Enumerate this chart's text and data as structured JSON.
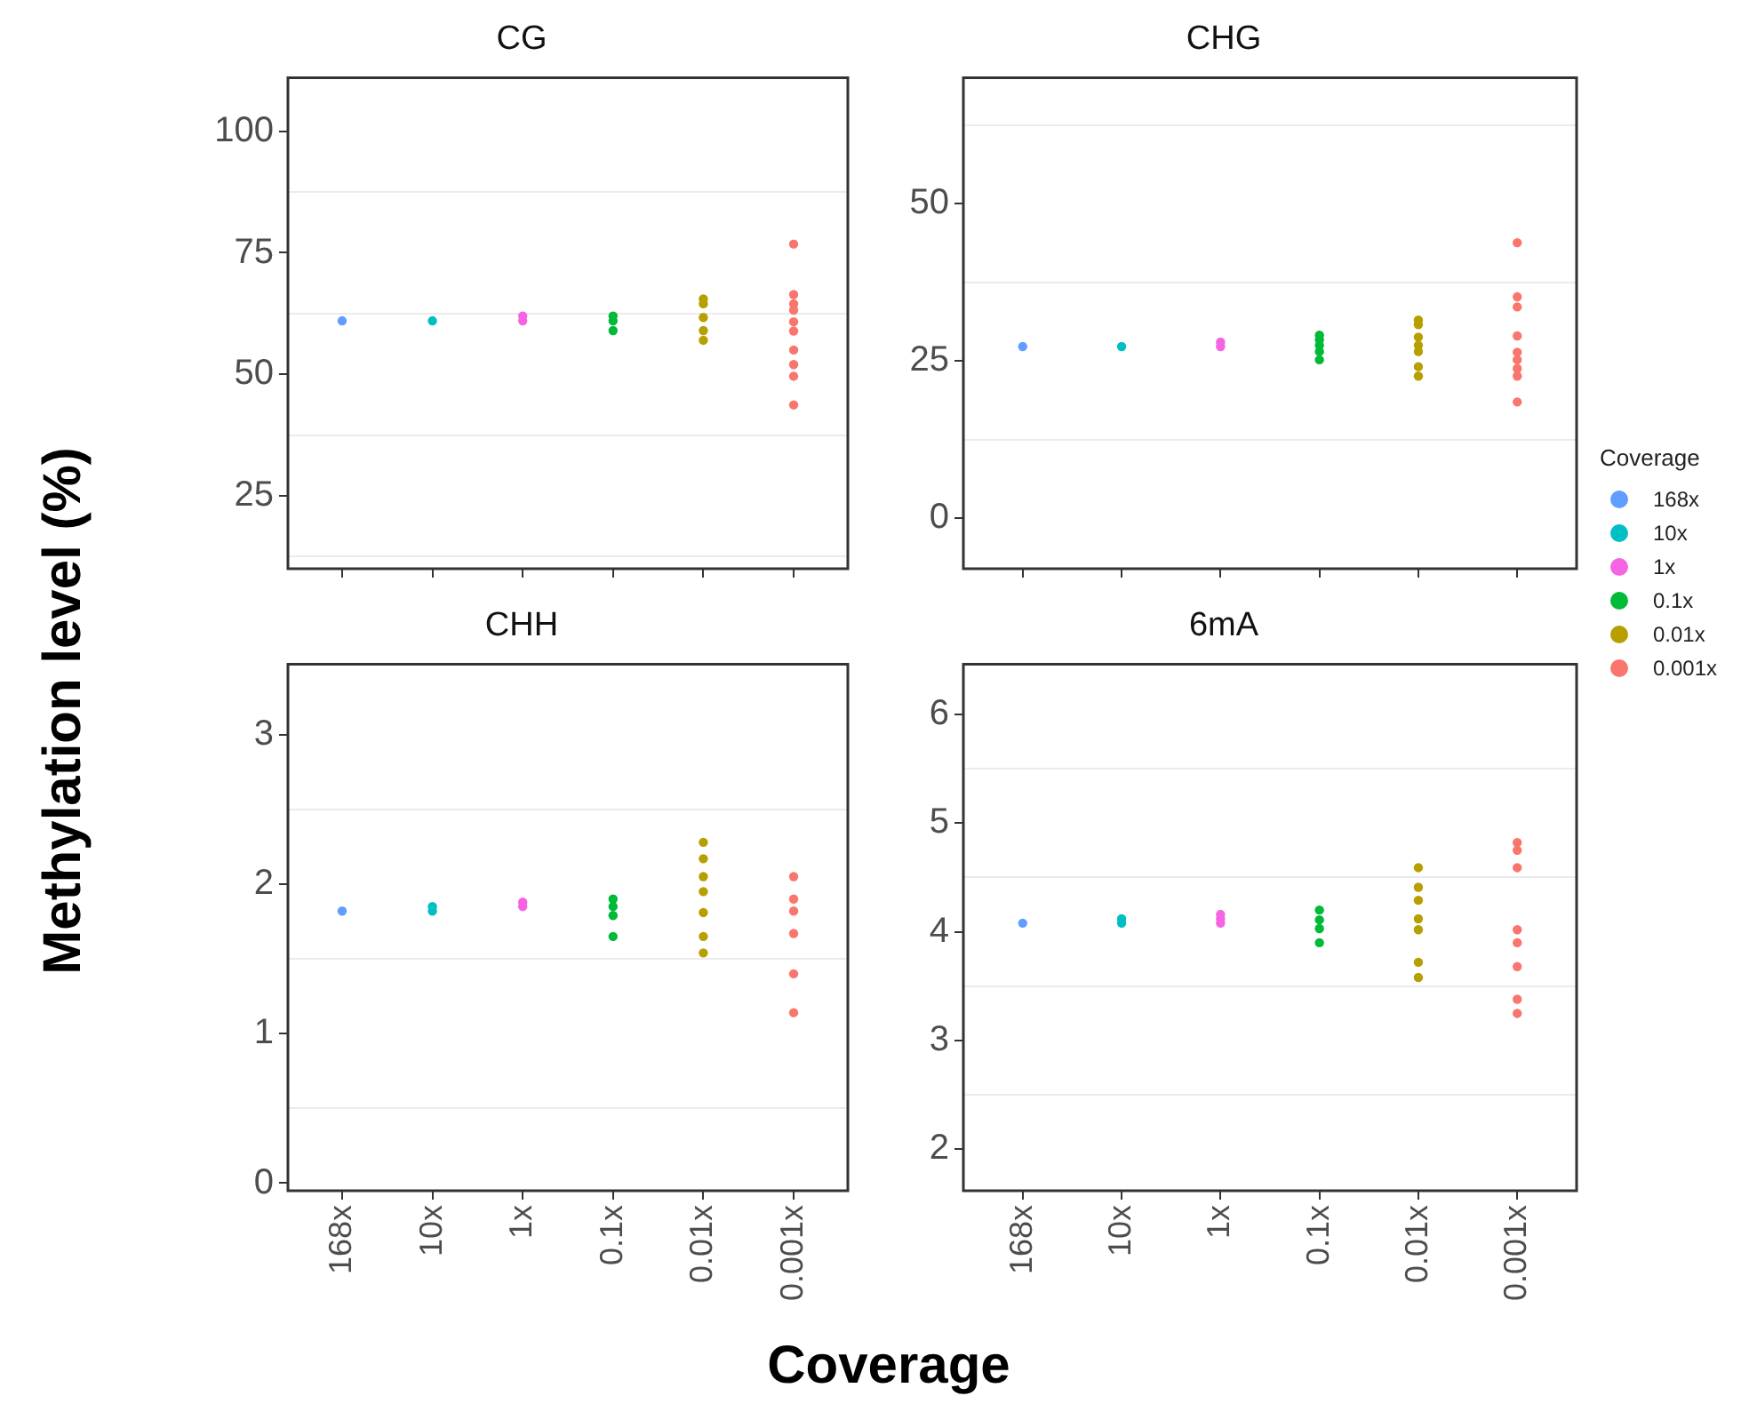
{
  "chart_data": [
    {
      "type": "scatter",
      "title": "CG",
      "ylabel": "Methylation level (%)",
      "categories": [
        "168x",
        "10x",
        "1x",
        "0.1x",
        "0.01x",
        "0.001x"
      ],
      "ylim": [
        10,
        111
      ],
      "yticks": [
        {
          "value": 12.5,
          "label": null
        },
        25,
        {
          "value": 37.5,
          "label": null
        },
        50,
        {
          "value": 62.5,
          "label": null
        },
        75,
        {
          "value": 87.5,
          "label": null
        },
        100
      ],
      "grid": "y",
      "tick_labels": "y",
      "marker": "circle",
      "series": [
        {
          "color": "#619cff",
          "x": [
            "168x"
          ],
          "values": [
            61
          ]
        },
        {
          "color": "#00bfc4",
          "x": [
            "10x"
          ],
          "values": [
            61
          ]
        },
        {
          "color": "#f564e3",
          "x": [
            "1x",
            "1x"
          ],
          "values": [
            61,
            62
          ]
        },
        {
          "color": "#00ba38",
          "x": [
            "0.1x",
            "0.1x",
            "0.1x"
          ],
          "values": [
            61,
            62,
            59
          ]
        },
        {
          "color": "#b79f00",
          "x": [
            "0.01x",
            "0.01x",
            "0.01x",
            "0.01x",
            "0.01x"
          ],
          "values": [
            65.5,
            64.5,
            61.7,
            59,
            57
          ]
        },
        {
          "color": "#f8766d",
          "x": [
            "0.001x",
            "0.001x",
            "0.001x",
            "0.001x",
            "0.001x",
            "0.001x",
            "0.001x",
            "0.001x",
            "0.001x",
            "0.001x"
          ],
          "values": [
            76.8,
            66.4,
            64.5,
            63.2,
            60.8,
            58.9,
            55,
            52,
            49.6,
            43.7
          ]
        }
      ]
    },
    {
      "type": "scatter",
      "title": "CHG",
      "categories": [
        "168x",
        "10x",
        "1x",
        "0.1x",
        "0.01x",
        "0.001x"
      ],
      "ylim": [
        -8,
        70
      ],
      "yticks": [
        0,
        {
          "value": 12.5,
          "label": null
        },
        25,
        {
          "value": 37.5,
          "label": null
        },
        50,
        {
          "value": 62.5,
          "label": null
        }
      ],
      "grid": "y",
      "tick_labels": "y",
      "marker": "circle",
      "legend": "right",
      "legend_title": "Coverage",
      "series": [
        {
          "name": "168x",
          "color": "#619cff",
          "x": [
            "168x"
          ],
          "values": [
            27.3
          ]
        },
        {
          "name": "10x",
          "color": "#00bfc4",
          "x": [
            "10x"
          ],
          "values": [
            27.3
          ]
        },
        {
          "name": "1x",
          "color": "#f564e3",
          "x": [
            "1x",
            "1x"
          ],
          "values": [
            27.3,
            28
          ]
        },
        {
          "name": "0.1x",
          "color": "#00ba38",
          "x": [
            "0.1x",
            "0.1x",
            "0.1x",
            "0.1x",
            "0.1x"
          ],
          "values": [
            29.1,
            28.4,
            27.5,
            26.5,
            25.2
          ]
        },
        {
          "name": "0.01x",
          "color": "#b79f00",
          "x": [
            "0.01x",
            "0.01x",
            "0.01x",
            "0.01x",
            "0.01x",
            "0.01x",
            "0.01x"
          ],
          "values": [
            31.5,
            30.8,
            28.8,
            27.5,
            26.5,
            24.1,
            22.6
          ]
        },
        {
          "name": "0.001x",
          "color": "#f8766d",
          "x": [
            "0.001x",
            "0.001x",
            "0.001x",
            "0.001x",
            "0.001x",
            "0.001x",
            "0.001x",
            "0.001x",
            "0.001x"
          ],
          "values": [
            43.8,
            35.2,
            33.6,
            29,
            26.4,
            25.2,
            23.8,
            22.6,
            18.5
          ]
        }
      ]
    },
    {
      "type": "scatter",
      "title": "CHH",
      "xlabel": "Coverage",
      "categories": [
        "168x",
        "10x",
        "1x",
        "0.1x",
        "0.01x",
        "0.001x"
      ],
      "ylim": [
        -0.05,
        3.47
      ],
      "yticks": [
        0,
        {
          "value": 0.5,
          "label": null
        },
        1,
        {
          "value": 1.5,
          "label": null
        },
        2,
        {
          "value": 2.5,
          "label": null
        },
        3
      ],
      "grid": "y",
      "marker": "circle",
      "series": [
        {
          "color": "#619cff",
          "x": [
            "168x"
          ],
          "values": [
            1.82
          ]
        },
        {
          "color": "#00bfc4",
          "x": [
            "10x",
            "10x"
          ],
          "values": [
            1.85,
            1.82
          ]
        },
        {
          "color": "#f564e3",
          "x": [
            "1x",
            "1x"
          ],
          "values": [
            1.85,
            1.88
          ]
        },
        {
          "color": "#00ba38",
          "x": [
            "0.1x",
            "0.1x",
            "0.1x",
            "0.1x"
          ],
          "values": [
            1.9,
            1.85,
            1.79,
            1.65
          ]
        },
        {
          "color": "#b79f00",
          "x": [
            "0.01x",
            "0.01x",
            "0.01x",
            "0.01x",
            "0.01x",
            "0.01x",
            "0.01x"
          ],
          "values": [
            2.28,
            2.17,
            2.05,
            1.95,
            1.81,
            1.65,
            1.54
          ]
        },
        {
          "color": "#f8766d",
          "x": [
            "0.001x",
            "0.001x",
            "0.001x",
            "0.001x",
            "0.001x",
            "0.001x"
          ],
          "values": [
            2.05,
            1.9,
            1.82,
            1.67,
            1.4,
            1.14
          ]
        }
      ]
    },
    {
      "type": "scatter",
      "title": "6mA",
      "categories": [
        "168x",
        "10x",
        "1x",
        "0.1x",
        "0.01x",
        "0.001x"
      ],
      "ylim": [
        1.62,
        6.46
      ],
      "yticks": [
        2,
        {
          "value": 2.5,
          "label": null
        },
        3,
        {
          "value": 3.5,
          "label": null
        },
        4,
        {
          "value": 4.5,
          "label": null
        },
        5,
        {
          "value": 5.5,
          "label": null
        },
        6
      ],
      "grid": "y",
      "marker": "circle",
      "series": [
        {
          "color": "#619cff",
          "x": [
            "168x"
          ],
          "values": [
            4.08
          ]
        },
        {
          "color": "#00bfc4",
          "x": [
            "10x",
            "10x"
          ],
          "values": [
            4.08,
            4.12
          ]
        },
        {
          "color": "#f564e3",
          "x": [
            "1x",
            "1x",
            "1x"
          ],
          "values": [
            4.08,
            4.12,
            4.16
          ]
        },
        {
          "color": "#00ba38",
          "x": [
            "0.1x",
            "0.1x",
            "0.1x",
            "0.1x"
          ],
          "values": [
            4.2,
            4.11,
            4.03,
            3.9
          ]
        },
        {
          "color": "#b79f00",
          "x": [
            "0.01x",
            "0.01x",
            "0.01x",
            "0.01x",
            "0.01x",
            "0.01x",
            "0.01x"
          ],
          "values": [
            4.59,
            4.41,
            4.29,
            4.12,
            4.02,
            3.72,
            3.58
          ]
        },
        {
          "color": "#f8766d",
          "x": [
            "0.001x",
            "0.001x",
            "0.001x",
            "0.001x",
            "0.001x",
            "0.001x",
            "0.001x",
            "0.001x"
          ],
          "values": [
            4.82,
            4.75,
            4.59,
            4.02,
            3.9,
            3.68,
            3.38,
            3.25
          ]
        }
      ]
    }
  ]
}
